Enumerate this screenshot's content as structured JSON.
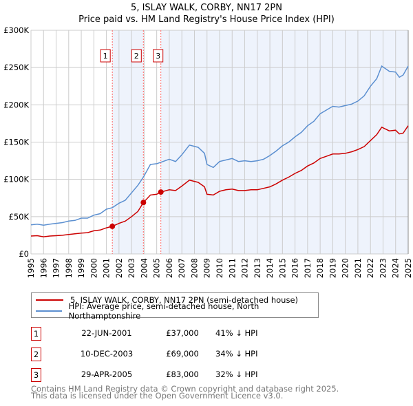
{
  "chart_data": {
    "type": "line",
    "title": "5, ISLAY WALK, CORBY, NN17 2PN",
    "subtitle": "Price paid vs. HM Land Registry's House Price Index (HPI)",
    "xlim": [
      1995,
      2025
    ],
    "ylim": [
      0,
      300000
    ],
    "x_ticks": [
      "1995",
      "1996",
      "1997",
      "1998",
      "1999",
      "2000",
      "2001",
      "2002",
      "2003",
      "2004",
      "2005",
      "2006",
      "2007",
      "2008",
      "2009",
      "2010",
      "2011",
      "2012",
      "2013",
      "2014",
      "2015",
      "2016",
      "2017",
      "2018",
      "2019",
      "2020",
      "2021",
      "2022",
      "2023",
      "2024",
      "2025"
    ],
    "y_ticks": [
      {
        "v": 0,
        "label": "£0"
      },
      {
        "v": 50000,
        "label": "£50K"
      },
      {
        "v": 100000,
        "label": "£100K"
      },
      {
        "v": 150000,
        "label": "£150K"
      },
      {
        "v": 200000,
        "label": "£200K"
      },
      {
        "v": 250000,
        "label": "£250K"
      },
      {
        "v": 300000,
        "label": "£300K"
      }
    ],
    "grid": true,
    "series": [
      {
        "name": "5, ISLAY WALK, CORBY, NN17 2PN (semi-detached house)",
        "color": "#cc0000",
        "x": [
          1995,
          1995.5,
          1996,
          1996.5,
          1997,
          1997.5,
          1998,
          1998.5,
          1999,
          1999.5,
          2000,
          2000.5,
          2001,
          2001.47,
          2002,
          2002.5,
          2003,
          2003.5,
          2003.94,
          2004.5,
          2005,
          2005.33,
          2006,
          2006.5,
          2007,
          2007.6,
          2008.3,
          2008.8,
          2009,
          2009.5,
          2010,
          2010.5,
          2011,
          2011.5,
          2012,
          2012.5,
          2013,
          2013.5,
          2014,
          2014.5,
          2015,
          2015.5,
          2016,
          2016.5,
          2017,
          2017.5,
          2018,
          2018.5,
          2019,
          2019.5,
          2020,
          2020.5,
          2021,
          2021.5,
          2022,
          2022.5,
          2022.9,
          2023.5,
          2024,
          2024.3,
          2024.6,
          2025
        ],
        "y": [
          24000,
          24500,
          23000,
          24000,
          24500,
          25000,
          26000,
          27000,
          28000,
          28500,
          31000,
          32000,
          35000,
          37000,
          41000,
          44000,
          50000,
          57000,
          69000,
          79000,
          80000,
          83000,
          86000,
          85000,
          91000,
          99000,
          96000,
          90000,
          80000,
          79000,
          84000,
          86000,
          87000,
          85000,
          85000,
          86000,
          86000,
          88000,
          90000,
          94000,
          99000,
          103000,
          108000,
          112000,
          118000,
          122000,
          128000,
          131000,
          134000,
          134000,
          135000,
          137000,
          140000,
          144000,
          152000,
          160000,
          170000,
          165000,
          166000,
          161000,
          162000,
          172000
        ]
      },
      {
        "name": "HPI: Average price, semi-detached house, North Northamptonshire",
        "color": "#5b8fd0",
        "x": [
          1995,
          1995.5,
          1996,
          1996.5,
          1997,
          1997.5,
          1998,
          1998.5,
          1999,
          1999.5,
          2000,
          2000.5,
          2001,
          2001.47,
          2002,
          2002.5,
          2003,
          2003.5,
          2003.94,
          2004.5,
          2005,
          2005.33,
          2006,
          2006.5,
          2007,
          2007.6,
          2008.3,
          2008.8,
          2009,
          2009.5,
          2010,
          2010.5,
          2011,
          2011.5,
          2012,
          2012.5,
          2013,
          2013.5,
          2014,
          2014.5,
          2015,
          2015.5,
          2016,
          2016.5,
          2017,
          2017.5,
          2018,
          2018.5,
          2019,
          2019.5,
          2020,
          2020.5,
          2021,
          2021.5,
          2022,
          2022.5,
          2022.9,
          2023.5,
          2024,
          2024.3,
          2024.6,
          2025
        ],
        "y": [
          39000,
          40000,
          38500,
          40000,
          41000,
          42000,
          44000,
          45000,
          48000,
          48000,
          52000,
          54000,
          60000,
          62000,
          68000,
          72000,
          82000,
          92000,
          103000,
          120000,
          121000,
          123000,
          127000,
          124000,
          133000,
          146000,
          143000,
          135000,
          120000,
          116000,
          124000,
          126000,
          128000,
          124000,
          125000,
          124000,
          125000,
          127000,
          132000,
          138000,
          145000,
          150000,
          157000,
          163000,
          172000,
          178000,
          188000,
          193000,
          198000,
          197000,
          199000,
          201000,
          205000,
          212000,
          225000,
          235000,
          252000,
          245000,
          244000,
          237000,
          240000,
          252000
        ]
      }
    ],
    "sales": [
      {
        "n": "1",
        "x": 2001.47,
        "y": 37000
      },
      {
        "n": "2",
        "x": 2003.94,
        "y": 69000
      },
      {
        "n": "3",
        "x": 2005.33,
        "y": 83000
      }
    ],
    "shade_color": "#eef3fc",
    "legend": "below"
  },
  "table": [
    {
      "n": "1",
      "date": "22-JUN-2001",
      "price": "£37,000",
      "hpi": "41% ↓ HPI"
    },
    {
      "n": "2",
      "date": "10-DEC-2003",
      "price": "£69,000",
      "hpi": "34% ↓ HPI"
    },
    {
      "n": "3",
      "date": "29-APR-2005",
      "price": "£83,000",
      "hpi": "32% ↓ HPI"
    }
  ],
  "footer": {
    "line1": "Contains HM Land Registry data © Crown copyright and database right 2025.",
    "line2": "This data is licensed under the Open Government Licence v3.0."
  }
}
